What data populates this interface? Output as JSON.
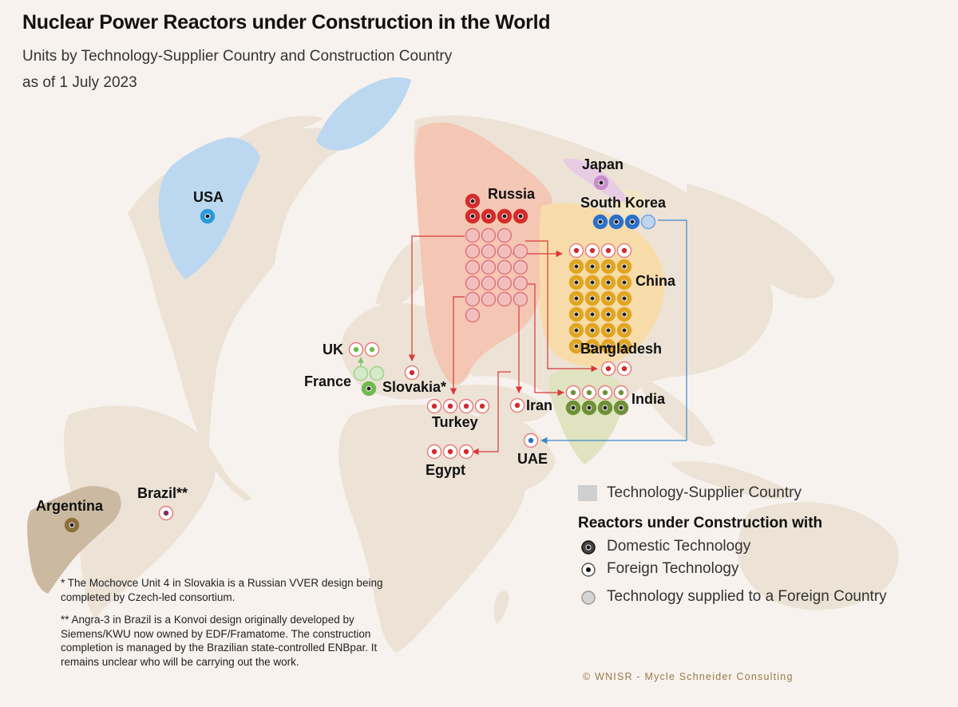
{
  "title": "Nuclear Power Reactors under Construction in the World",
  "subtitle1": "Units by Technology-Supplier Country and Construction Country",
  "subtitle2": "as of 1 July 2023",
  "colors": {
    "background": "#f7f2ee",
    "land": "#ece2d5",
    "usa": "#bcd8f0",
    "russia": "#f4c6b4",
    "china": "#f7dcaa",
    "japan": "#e8cce4",
    "korea": "#f3e6c6",
    "argentina": "#cbb9a1",
    "foreign_dot": "#d42a2a",
    "arrow": "#d83a3a",
    "korea_arrow": "#3f88c8"
  },
  "countries": {
    "usa": {
      "label": "USA",
      "domestic": 1,
      "foreign": 0,
      "supplied": 0,
      "color": "#2a9ad6"
    },
    "russia": {
      "label": "Russia",
      "domestic": 5,
      "foreign": 0,
      "supplied": 20,
      "color": "#d42a2a"
    },
    "japan": {
      "label": "Japan",
      "domestic": 1,
      "foreign": 0,
      "supplied": 0,
      "color": "#c98ccc"
    },
    "south_korea": {
      "label": "South Korea",
      "domestic": 3,
      "foreign": 0,
      "supplied": 1,
      "color": "#2a6fc9"
    },
    "china": {
      "label": "China",
      "domestic": 24,
      "foreign": 4,
      "supplied": 0,
      "color": "#e0a420"
    },
    "bangladesh": {
      "label": "Bangladesh",
      "domestic": 0,
      "foreign": 2,
      "supplied": 0
    },
    "india": {
      "label": "India",
      "domestic": 4,
      "foreign": 4,
      "supplied": 0,
      "color": "#6f8f35"
    },
    "uk": {
      "label": "UK",
      "domestic": 0,
      "foreign": 2,
      "supplied": 0
    },
    "france": {
      "label": "France",
      "domestic": 1,
      "foreign": 0,
      "supplied": 2,
      "color": "#6fba4e"
    },
    "slovakia": {
      "label": "Slovakia*",
      "domestic": 0,
      "foreign": 1,
      "supplied": 0
    },
    "turkey": {
      "label": "Turkey",
      "domestic": 0,
      "foreign": 4,
      "supplied": 0
    },
    "iran": {
      "label": "Iran",
      "domestic": 0,
      "foreign": 1,
      "supplied": 0
    },
    "egypt": {
      "label": "Egypt",
      "domestic": 0,
      "foreign": 3,
      "supplied": 0
    },
    "uae": {
      "label": "UAE",
      "domestic": 0,
      "foreign": 1,
      "supplied": 0
    },
    "argentina": {
      "label": "Argentina",
      "domestic": 1,
      "foreign": 0,
      "supplied": 0,
      "color": "#8c6f3a"
    },
    "brazil": {
      "label": "Brazil**",
      "domestic": 0,
      "foreign": 1,
      "supplied": 0
    }
  },
  "legend": {
    "supplier_country": "Technology-Supplier Country",
    "title": "Reactors under Construction with",
    "domestic": "Domestic Technology",
    "foreign": "Foreign Technology",
    "supplied": "Technology supplied to a Foreign Country"
  },
  "notes": {
    "note1": "* The Mochovce Unit 4 in Slovakia is a Russian VVER design being completed by Czech-led consortium.",
    "note2": "** Angra-3 in Brazil is a Konvoi design originally developed by Siemens/KWU now owned by EDF/Framatome. The construction completion is managed by the Brazilian state-controlled ENBpar. It remains unclear who will be carrying out the work."
  },
  "copyright": "© WNISR - Mycle Schneider Consulting"
}
